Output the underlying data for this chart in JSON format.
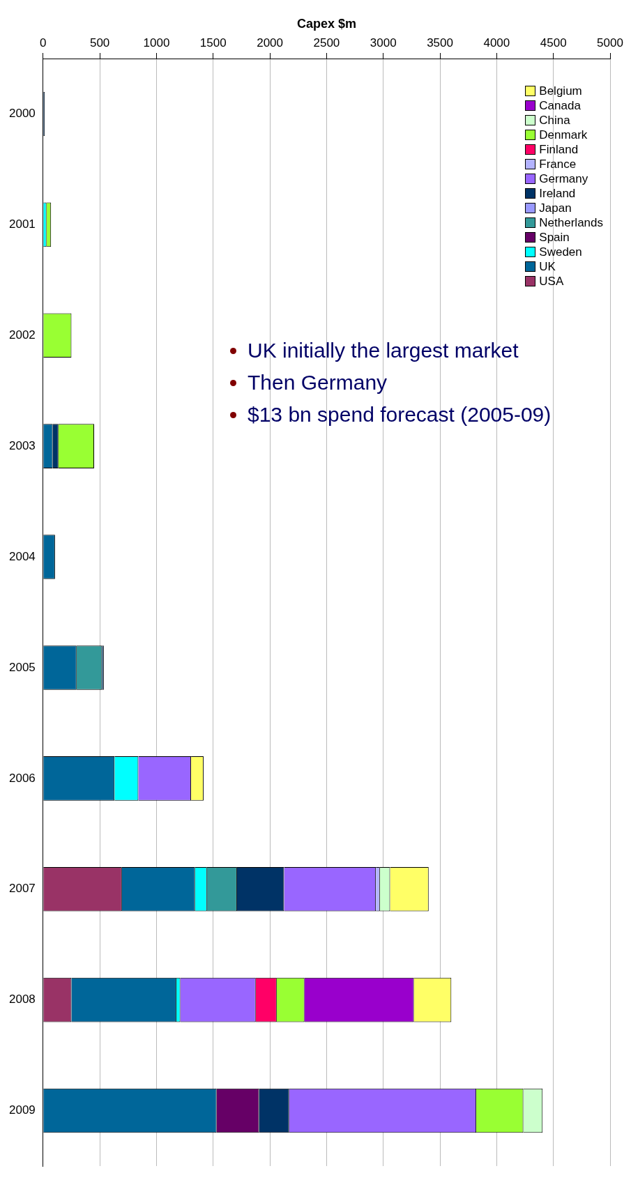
{
  "chart_data": {
    "type": "bar",
    "orientation": "horizontal",
    "stacked": true,
    "xlabel": "Capex $m",
    "categories": [
      "2000",
      "2001",
      "2002",
      "2003",
      "2004",
      "2005",
      "2006",
      "2007",
      "2008",
      "2009"
    ],
    "xlim": [
      0,
      5000
    ],
    "xticks": [
      0,
      500,
      1000,
      1500,
      2000,
      2500,
      3000,
      3500,
      4000,
      4500,
      5000
    ],
    "grid": "x",
    "legend": "top right",
    "series": [
      {
        "name": "USA",
        "color": "#993366",
        "values": [
          null,
          null,
          null,
          null,
          null,
          null,
          null,
          695,
          250,
          null
        ]
      },
      {
        "name": "UK",
        "color": "#006699",
        "values": [
          null,
          null,
          null,
          85,
          105,
          295,
          630,
          645,
          925,
          1530
        ]
      },
      {
        "name": "Sweden",
        "color": "#00ffff",
        "values": [
          null,
          30,
          null,
          null,
          null,
          null,
          210,
          105,
          35,
          null
        ]
      },
      {
        "name": "Spain",
        "color": "#660066",
        "values": [
          null,
          null,
          null,
          null,
          null,
          null,
          null,
          null,
          null,
          375
        ]
      },
      {
        "name": "Netherlands",
        "color": "#339999",
        "values": [
          null,
          null,
          null,
          null,
          null,
          225,
          null,
          265,
          null,
          null
        ]
      },
      {
        "name": "Japan",
        "color": "#9999ff",
        "values": [
          null,
          null,
          null,
          null,
          null,
          null,
          null,
          null,
          null,
          null
        ]
      },
      {
        "name": "Ireland",
        "color": "#003366",
        "values": [
          15,
          null,
          null,
          50,
          null,
          15,
          null,
          415,
          null,
          265
        ]
      },
      {
        "name": "Germany",
        "color": "#9966ff",
        "values": [
          null,
          null,
          null,
          null,
          null,
          null,
          465,
          810,
          665,
          1650
        ]
      },
      {
        "name": "France",
        "color": "#b3b3ff",
        "values": [
          null,
          null,
          null,
          null,
          null,
          null,
          null,
          35,
          null,
          null
        ]
      },
      {
        "name": "Finland",
        "color": "#ff0066",
        "values": [
          null,
          null,
          null,
          null,
          null,
          null,
          null,
          null,
          185,
          null
        ]
      },
      {
        "name": "Denmark",
        "color": "#99ff33",
        "values": [
          null,
          40,
          250,
          315,
          null,
          null,
          null,
          null,
          245,
          415
        ]
      },
      {
        "name": "China",
        "color": "#ccffcc",
        "values": [
          null,
          null,
          null,
          null,
          null,
          null,
          null,
          90,
          null,
          170
        ]
      },
      {
        "name": "Canada",
        "color": "#9900cc",
        "values": [
          null,
          null,
          null,
          null,
          null,
          null,
          null,
          null,
          965,
          null
        ]
      },
      {
        "name": "Belgium",
        "color": "#ffff66",
        "values": [
          null,
          null,
          null,
          null,
          null,
          null,
          110,
          340,
          330,
          null
        ]
      }
    ],
    "annotations": [
      "UK initially the largest market",
      "Then Germany",
      "$13 bn spend forecast (2005-09)"
    ]
  }
}
